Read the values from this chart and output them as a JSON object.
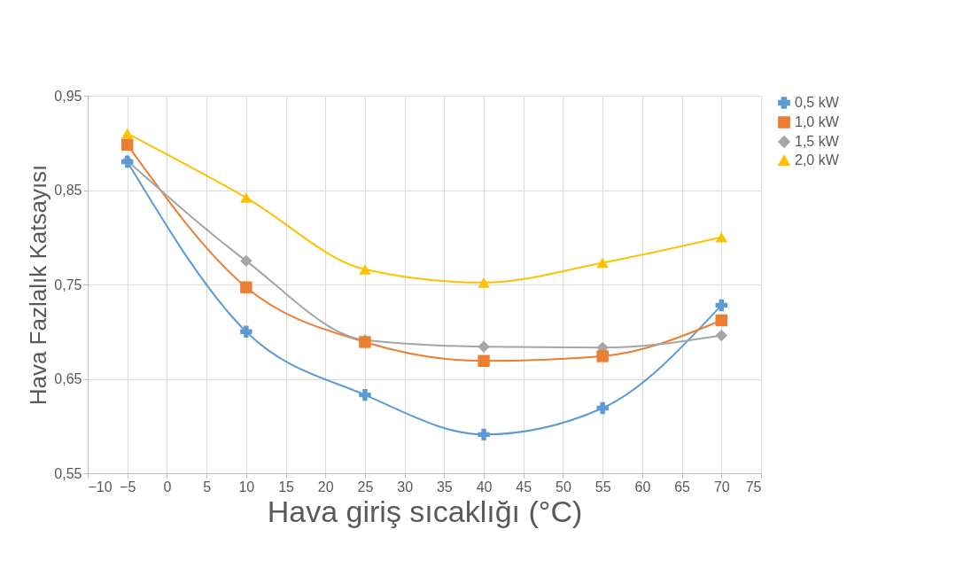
{
  "chart_data": {
    "type": "line",
    "xlabel": "Hava giriş sıcaklığı (°C)",
    "ylabel": "Hava Fazlalık Katsayısı",
    "x": [
      -5,
      10,
      25,
      40,
      55,
      70
    ],
    "series": [
      {
        "name": "0,5 kW",
        "color": "#5b9bd5",
        "marker": "cross",
        "values": [
          0.88,
          0.7,
          0.633,
          0.591,
          0.619,
          0.728
        ]
      },
      {
        "name": "1,0 kW",
        "color": "#ed7d31",
        "marker": "square",
        "values": [
          0.898,
          0.747,
          0.689,
          0.669,
          0.674,
          0.712
        ]
      },
      {
        "name": "1,5 kW",
        "color": "#a5a5a5",
        "marker": "diamond",
        "values": [
          0.881,
          0.775,
          0.691,
          0.684,
          0.683,
          0.696
        ]
      },
      {
        "name": "2,0 kW",
        "color": "#ffc000",
        "marker": "triangle",
        "values": [
          0.91,
          0.842,
          0.766,
          0.752,
          0.773,
          0.8
        ]
      }
    ],
    "xlim": [
      -10,
      75
    ],
    "xticks": [
      -10,
      -5,
      0,
      5,
      10,
      15,
      20,
      25,
      30,
      35,
      40,
      45,
      50,
      55,
      60,
      65,
      70,
      75
    ],
    "ylim": [
      0.55,
      0.95
    ],
    "yticks": [
      {
        "value": 0.55,
        "label": "0,55"
      },
      {
        "value": 0.65,
        "label": "0,65"
      },
      {
        "value": 0.75,
        "label": "0,75"
      },
      {
        "value": 0.85,
        "label": "0,85"
      },
      {
        "value": 0.95,
        "label": "0,95"
      }
    ],
    "grid": true,
    "legend": "right",
    "line_style": "solid"
  }
}
